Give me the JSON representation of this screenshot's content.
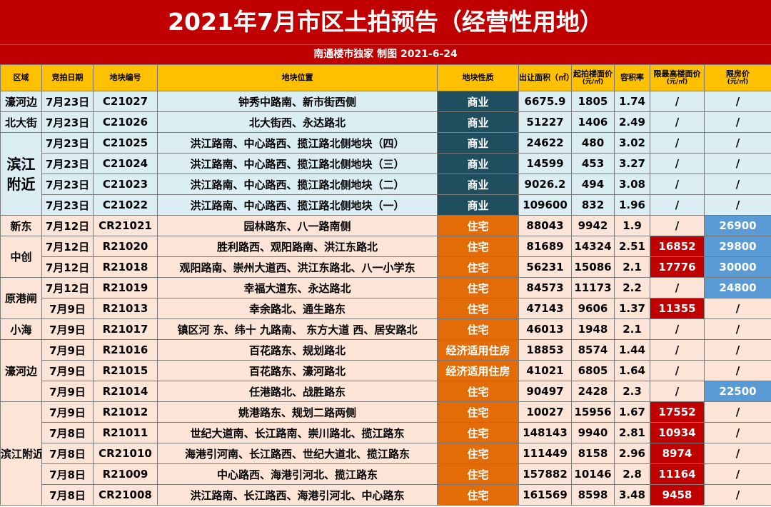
{
  "header": {
    "title": "2021年7月市区土拍预告（经营性用地）",
    "subtitle": "南通楼市独家 制图 2021-6-24"
  },
  "columns": [
    {
      "label": "区域",
      "unit": ""
    },
    {
      "label": "竞拍日期",
      "unit": ""
    },
    {
      "label": "地块编号",
      "unit": ""
    },
    {
      "label": "地块位置",
      "unit": ""
    },
    {
      "label": "地块性质",
      "unit": ""
    },
    {
      "label": "出让面积（㎡）",
      "unit": ""
    },
    {
      "label": "起拍楼面价",
      "unit": "(元/㎡)"
    },
    {
      "label": "容积率",
      "unit": ""
    },
    {
      "label": "限最高楼面价",
      "unit": "(元/㎡)"
    },
    {
      "label": "限房价",
      "unit": "(元/㎡)"
    }
  ],
  "areas": [
    "濠河边",
    "北大街",
    "滨江附近",
    "新东",
    "中创",
    "原港闸",
    "小海",
    "濠河边",
    "滨江附近"
  ],
  "rows": [
    {
      "date": "7月23日",
      "code": "C21027",
      "location": "钟秀中路南、新市街西侧",
      "nature": "商业",
      "area": "6675.9",
      "start_price": "1805",
      "far": "1.74",
      "max_price": "/",
      "limit_price": "/"
    },
    {
      "date": "7月23日",
      "code": "C21026",
      "location": "北大街西、永达路北",
      "nature": "商业",
      "area": "51227",
      "start_price": "1406",
      "far": "2.49",
      "max_price": "/",
      "limit_price": "/"
    },
    {
      "date": "7月23日",
      "code": "C21025",
      "location": "洪江路南、中心路西、揽江路北侧地块（四）",
      "nature": "商业",
      "area": "24622",
      "start_price": "480",
      "far": "3.02",
      "max_price": "/",
      "limit_price": "/"
    },
    {
      "date": "7月23日",
      "code": "C21024",
      "location": "洪江路南、中心路西、揽江路北侧地块（三）",
      "nature": "商业",
      "area": "14599",
      "start_price": "453",
      "far": "3.27",
      "max_price": "/",
      "limit_price": "/"
    },
    {
      "date": "7月23日",
      "code": "C21023",
      "location": "洪江路南、中心路西、揽江路北侧地块（二）",
      "nature": "商业",
      "area": "9026.2",
      "start_price": "494",
      "far": "3.08",
      "max_price": "/",
      "limit_price": "/"
    },
    {
      "date": "7月23日",
      "code": "C21022",
      "location": "洪江路南、中心路西、揽江路北侧地块（一）",
      "nature": "商业",
      "area": "109600",
      "start_price": "832",
      "far": "1.96",
      "max_price": "/",
      "limit_price": "/"
    },
    {
      "date": "7月12日",
      "code": "CR21021",
      "location": "园林路东、八一路南侧",
      "nature": "住宅",
      "area": "88043",
      "start_price": "9942",
      "far": "1.9",
      "max_price": "/",
      "limit_price": "26900"
    },
    {
      "date": "7月12日",
      "code": "R21020",
      "location": "胜利路西、观阳路南、洪江东路北",
      "nature": "住宅",
      "area": "81689",
      "start_price": "14324",
      "far": "2.51",
      "max_price": "16852",
      "limit_price": "29800"
    },
    {
      "date": "7月12日",
      "code": "R21018",
      "location": "观阳路南、崇州大道西、洪江东路北、八一小学东",
      "nature": "住宅",
      "area": "56231",
      "start_price": "15086",
      "far": "2.1",
      "max_price": "17776",
      "limit_price": "30000"
    },
    {
      "date": "7月12日",
      "code": "R21019",
      "location": "幸福大道东、永达路北",
      "nature": "住宅",
      "area": "84573",
      "start_price": "11173",
      "far": "2.2",
      "max_price": "/",
      "limit_price": "24800"
    },
    {
      "date": "7月9日",
      "code": "R21013",
      "location": "幸余路北、通生路东",
      "nature": "住宅",
      "area": "47143",
      "start_price": "9606",
      "far": "1.37",
      "max_price": "11355",
      "limit_price": "/"
    },
    {
      "date": "7月9日",
      "code": "R21017",
      "location": "镇区河 东、纬十 九路南、 东方大道 西、居安路北",
      "nature": "住宅",
      "area": "46013",
      "start_price": "1948",
      "far": "2.1",
      "max_price": "/",
      "limit_price": "/"
    },
    {
      "date": "7月9日",
      "code": "R21016",
      "location": "百花路东、规划路北",
      "nature": "经济适用住房",
      "area": "18853",
      "start_price": "8574",
      "far": "1.44",
      "max_price": "/",
      "limit_price": "/"
    },
    {
      "date": "7月9日",
      "code": "R21015",
      "location": "百花路东、濠河路北",
      "nature": "经济适用住房",
      "area": "41021",
      "start_price": "6805",
      "far": "1.64",
      "max_price": "/",
      "limit_price": "/"
    },
    {
      "date": "7月9日",
      "code": "R21014",
      "location": "任港路北、战胜路东",
      "nature": "住宅",
      "area": "90497",
      "start_price": "2428",
      "far": "2.3",
      "max_price": "/",
      "limit_price": "22500"
    },
    {
      "date": "7月9日",
      "code": "R21012",
      "location": "姚港路东、规划二路两侧",
      "nature": "住宅",
      "area": "10027",
      "start_price": "15956",
      "far": "1.67",
      "max_price": "17552",
      "limit_price": "/"
    },
    {
      "date": "7月8日",
      "code": "R21011",
      "location": "世纪大道南、长江路南、崇川路北、揽江路东",
      "nature": "住宅",
      "area": "148143",
      "start_price": "9940",
      "far": "2.81",
      "max_price": "10934",
      "limit_price": "/"
    },
    {
      "date": "7月8日",
      "code": "CR21010",
      "location": "海港引河南、长江路西、世纪大道北、揽江路东",
      "nature": "住宅",
      "area": "111449",
      "start_price": "8158",
      "far": "2.96",
      "max_price": "8974",
      "limit_price": "/"
    },
    {
      "date": "7月8日",
      "code": "R21009",
      "location": "中心路西、海港引河北、揽江路东",
      "nature": "住宅",
      "area": "157882",
      "start_price": "10146",
      "far": "2.8",
      "max_price": "11164",
      "limit_price": "/"
    },
    {
      "date": "7月8日",
      "code": "CR21008",
      "location": "洪江路南、长江路西、海港引河北、中心路东",
      "nature": "住宅",
      "area": "161569",
      "start_price": "8598",
      "far": "3.48",
      "max_price": "9458",
      "limit_price": "/"
    }
  ],
  "colors": {
    "title_bg": "#c00000",
    "header_bg": "#ffc000",
    "commercial": "#1f4e5f",
    "residential": "#e36c09",
    "max_price_bg": "#c00000",
    "limit_price_bg": "#5b9bd5",
    "row_blue": "#dbeef3",
    "row_pink": "#fce4d6"
  }
}
